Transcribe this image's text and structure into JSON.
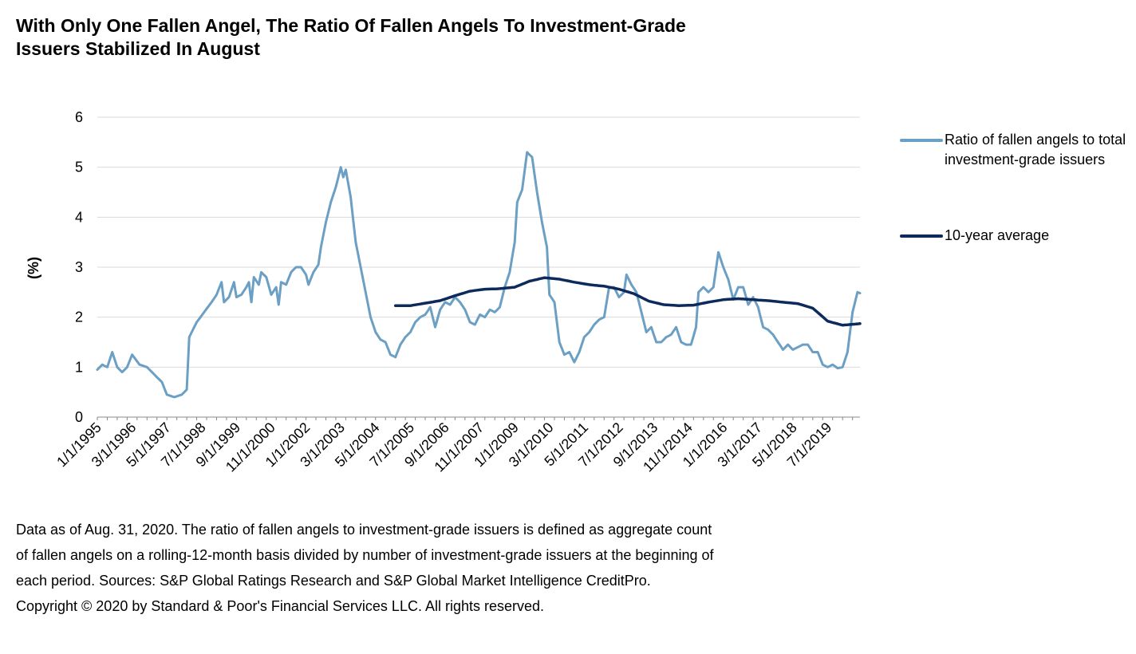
{
  "title_lines": [
    "With Only One Fallen Angel, The Ratio Of Fallen Angels To Investment-Grade",
    "Issuers Stabilized In August"
  ],
  "notes": [
    "Data as of Aug. 31, 2020. The ratio of fallen angels to investment-grade issuers is defined as aggregate count",
    "of fallen angels on a rolling-12-month basis divided by number of investment-grade issuers at the beginning of",
    "each period. Sources: S&P Global Ratings Research and S&P Global Market Intelligence CreditPro.",
    "Copyright © 2020 by Standard & Poor's Financial Services LLC. All rights reserved."
  ],
  "colors": {
    "ratio": "#6b9fc4",
    "average": "#0d2a5c",
    "grid": "#d9d9d9",
    "axis": "#888888"
  },
  "chart_data": {
    "type": "line",
    "ylabel": "(%)",
    "xlabel": "",
    "ylim": [
      0,
      6
    ],
    "yticks": [
      0,
      1,
      2,
      3,
      4,
      5,
      6
    ],
    "grid": "horizontal",
    "legend_position": "right",
    "x_start": "1995-01",
    "x_end": "2020-08",
    "xtick_labels": [
      "1/1/1995",
      "3/1/1996",
      "5/1/1997",
      "7/1/1998",
      "9/1/1999",
      "11/1/2000",
      "1/1/2002",
      "3/1/2003",
      "5/1/2004",
      "7/1/2005",
      "9/1/2006",
      "11/1/2007",
      "1/1/2009",
      "3/1/2010",
      "5/1/2011",
      "7/1/2012",
      "9/1/2013",
      "11/1/2014",
      "1/1/2016",
      "3/1/2017",
      "5/1/2018",
      "7/1/2019"
    ],
    "series": [
      {
        "name": "Ratio of fallen angels to total investment-grade issuers",
        "color": "#6b9fc4",
        "start": "1995-01",
        "anchors": [
          [
            "1995-01",
            0.95
          ],
          [
            "1995-03",
            1.05
          ],
          [
            "1995-05",
            1.0
          ],
          [
            "1995-07",
            1.3
          ],
          [
            "1995-09",
            1.0
          ],
          [
            "1995-11",
            0.9
          ],
          [
            "1996-01",
            1.0
          ],
          [
            "1996-03",
            1.25
          ],
          [
            "1996-06",
            1.05
          ],
          [
            "1996-09",
            1.0
          ],
          [
            "1996-12",
            0.85
          ],
          [
            "1997-03",
            0.7
          ],
          [
            "1997-05",
            0.45
          ],
          [
            "1997-08",
            0.4
          ],
          [
            "1997-11",
            0.45
          ],
          [
            "1998-01",
            0.55
          ],
          [
            "1998-02",
            1.6
          ],
          [
            "1998-05",
            1.9
          ],
          [
            "1998-08",
            2.1
          ],
          [
            "1998-11",
            2.3
          ],
          [
            "1999-01",
            2.45
          ],
          [
            "1999-03",
            2.7
          ],
          [
            "1999-04",
            2.3
          ],
          [
            "1999-06",
            2.4
          ],
          [
            "1999-08",
            2.7
          ],
          [
            "1999-09",
            2.4
          ],
          [
            "1999-11",
            2.45
          ],
          [
            "2000-01",
            2.6
          ],
          [
            "2000-02",
            2.7
          ],
          [
            "2000-03",
            2.3
          ],
          [
            "2000-04",
            2.8
          ],
          [
            "2000-06",
            2.65
          ],
          [
            "2000-07",
            2.9
          ],
          [
            "2000-09",
            2.8
          ],
          [
            "2000-11",
            2.45
          ],
          [
            "2001-01",
            2.6
          ],
          [
            "2001-02",
            2.25
          ],
          [
            "2001-03",
            2.7
          ],
          [
            "2001-05",
            2.65
          ],
          [
            "2001-07",
            2.9
          ],
          [
            "2001-09",
            3.0
          ],
          [
            "2001-11",
            3.0
          ],
          [
            "2002-01",
            2.85
          ],
          [
            "2002-02",
            2.65
          ],
          [
            "2002-04",
            2.9
          ],
          [
            "2002-06",
            3.05
          ],
          [
            "2002-07",
            3.4
          ],
          [
            "2002-09",
            3.9
          ],
          [
            "2002-11",
            4.3
          ],
          [
            "2003-01",
            4.6
          ],
          [
            "2003-03",
            5.0
          ],
          [
            "2003-04",
            4.8
          ],
          [
            "2003-05",
            4.95
          ],
          [
            "2003-07",
            4.4
          ],
          [
            "2003-09",
            3.5
          ],
          [
            "2003-11",
            3.0
          ],
          [
            "2004-01",
            2.5
          ],
          [
            "2004-03",
            2.0
          ],
          [
            "2004-05",
            1.7
          ],
          [
            "2004-07",
            1.55
          ],
          [
            "2004-09",
            1.5
          ],
          [
            "2004-11",
            1.25
          ],
          [
            "2005-01",
            1.2
          ],
          [
            "2005-03",
            1.45
          ],
          [
            "2005-05",
            1.6
          ],
          [
            "2005-07",
            1.7
          ],
          [
            "2005-09",
            1.9
          ],
          [
            "2005-11",
            2.0
          ],
          [
            "2006-01",
            2.05
          ],
          [
            "2006-03",
            2.2
          ],
          [
            "2006-05",
            1.8
          ],
          [
            "2006-07",
            2.15
          ],
          [
            "2006-09",
            2.3
          ],
          [
            "2006-11",
            2.25
          ],
          [
            "2007-01",
            2.4
          ],
          [
            "2007-03",
            2.3
          ],
          [
            "2007-05",
            2.15
          ],
          [
            "2007-07",
            1.9
          ],
          [
            "2007-09",
            1.85
          ],
          [
            "2007-11",
            2.05
          ],
          [
            "2008-01",
            2.0
          ],
          [
            "2008-03",
            2.15
          ],
          [
            "2008-05",
            2.1
          ],
          [
            "2008-07",
            2.2
          ],
          [
            "2008-09",
            2.6
          ],
          [
            "2008-11",
            2.9
          ],
          [
            "2009-01",
            3.5
          ],
          [
            "2009-02",
            4.3
          ],
          [
            "2009-04",
            4.55
          ],
          [
            "2009-06",
            5.3
          ],
          [
            "2009-08",
            5.2
          ],
          [
            "2009-10",
            4.5
          ],
          [
            "2009-12",
            3.9
          ],
          [
            "2010-02",
            3.4
          ],
          [
            "2010-03",
            2.45
          ],
          [
            "2010-05",
            2.3
          ],
          [
            "2010-07",
            1.5
          ],
          [
            "2010-09",
            1.25
          ],
          [
            "2010-11",
            1.3
          ],
          [
            "2011-01",
            1.1
          ],
          [
            "2011-03",
            1.3
          ],
          [
            "2011-05",
            1.6
          ],
          [
            "2011-07",
            1.7
          ],
          [
            "2011-09",
            1.85
          ],
          [
            "2011-11",
            1.95
          ],
          [
            "2012-01",
            2.0
          ],
          [
            "2012-03",
            2.6
          ],
          [
            "2012-05",
            2.6
          ],
          [
            "2012-07",
            2.4
          ],
          [
            "2012-09",
            2.5
          ],
          [
            "2012-10",
            2.85
          ],
          [
            "2012-12",
            2.65
          ],
          [
            "2013-02",
            2.5
          ],
          [
            "2013-04",
            2.1
          ],
          [
            "2013-06",
            1.7
          ],
          [
            "2013-08",
            1.8
          ],
          [
            "2013-10",
            1.5
          ],
          [
            "2013-12",
            1.5
          ],
          [
            "2014-02",
            1.6
          ],
          [
            "2014-04",
            1.65
          ],
          [
            "2014-06",
            1.8
          ],
          [
            "2014-08",
            1.5
          ],
          [
            "2014-10",
            1.45
          ],
          [
            "2014-12",
            1.45
          ],
          [
            "2015-02",
            1.8
          ],
          [
            "2015-03",
            2.5
          ],
          [
            "2015-05",
            2.6
          ],
          [
            "2015-07",
            2.5
          ],
          [
            "2015-09",
            2.6
          ],
          [
            "2015-11",
            3.3
          ],
          [
            "2016-01",
            3.0
          ],
          [
            "2016-03",
            2.75
          ],
          [
            "2016-05",
            2.35
          ],
          [
            "2016-07",
            2.6
          ],
          [
            "2016-09",
            2.6
          ],
          [
            "2016-11",
            2.25
          ],
          [
            "2017-01",
            2.4
          ],
          [
            "2017-03",
            2.2
          ],
          [
            "2017-05",
            1.8
          ],
          [
            "2017-07",
            1.75
          ],
          [
            "2017-09",
            1.65
          ],
          [
            "2017-11",
            1.5
          ],
          [
            "2018-01",
            1.35
          ],
          [
            "2018-03",
            1.45
          ],
          [
            "2018-05",
            1.35
          ],
          [
            "2018-07",
            1.4
          ],
          [
            "2018-09",
            1.45
          ],
          [
            "2018-11",
            1.45
          ],
          [
            "2019-01",
            1.3
          ],
          [
            "2019-03",
            1.3
          ],
          [
            "2019-05",
            1.05
          ],
          [
            "2019-07",
            1.0
          ],
          [
            "2019-09",
            1.05
          ],
          [
            "2019-11",
            0.98
          ],
          [
            "2020-01",
            1.0
          ],
          [
            "2020-03",
            1.3
          ],
          [
            "2020-05",
            2.1
          ],
          [
            "2020-07",
            2.5
          ],
          [
            "2020-08",
            2.48
          ]
        ]
      },
      {
        "name": "10-year average",
        "color": "#0d2a5c",
        "start": "2005-01",
        "anchors": [
          [
            "2005-01",
            2.23
          ],
          [
            "2005-07",
            2.23
          ],
          [
            "2006-01",
            2.28
          ],
          [
            "2006-07",
            2.33
          ],
          [
            "2007-01",
            2.43
          ],
          [
            "2007-07",
            2.52
          ],
          [
            "2008-01",
            2.56
          ],
          [
            "2008-07",
            2.57
          ],
          [
            "2009-01",
            2.6
          ],
          [
            "2009-07",
            2.72
          ],
          [
            "2010-01",
            2.79
          ],
          [
            "2010-07",
            2.76
          ],
          [
            "2011-01",
            2.7
          ],
          [
            "2011-07",
            2.65
          ],
          [
            "2012-01",
            2.62
          ],
          [
            "2012-07",
            2.56
          ],
          [
            "2013-01",
            2.47
          ],
          [
            "2013-07",
            2.32
          ],
          [
            "2014-01",
            2.25
          ],
          [
            "2014-07",
            2.23
          ],
          [
            "2015-01",
            2.24
          ],
          [
            "2015-07",
            2.3
          ],
          [
            "2016-01",
            2.35
          ],
          [
            "2016-07",
            2.37
          ],
          [
            "2017-01",
            2.35
          ],
          [
            "2017-07",
            2.33
          ],
          [
            "2018-01",
            2.3
          ],
          [
            "2018-07",
            2.27
          ],
          [
            "2019-01",
            2.18
          ],
          [
            "2019-07",
            1.92
          ],
          [
            "2020-01",
            1.84
          ],
          [
            "2020-08",
            1.87
          ]
        ]
      }
    ]
  }
}
